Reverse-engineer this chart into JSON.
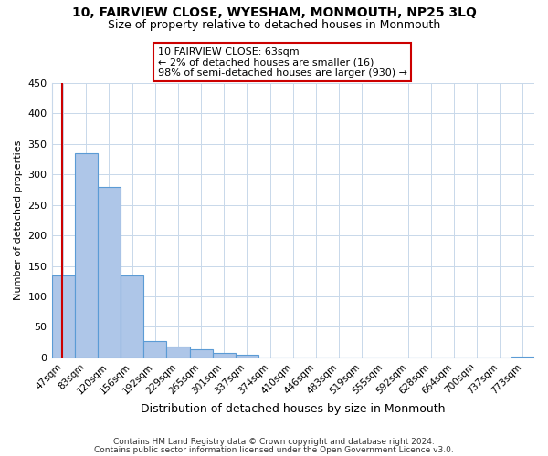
{
  "title": "10, FAIRVIEW CLOSE, WYESHAM, MONMOUTH, NP25 3LQ",
  "subtitle": "Size of property relative to detached houses in Monmouth",
  "xlabel": "Distribution of detached houses by size in Monmouth",
  "ylabel": "Number of detached properties",
  "bar_labels": [
    "47sqm",
    "83sqm",
    "120sqm",
    "156sqm",
    "192sqm",
    "229sqm",
    "265sqm",
    "301sqm",
    "337sqm",
    "374sqm",
    "410sqm",
    "446sqm",
    "483sqm",
    "519sqm",
    "555sqm",
    "592sqm",
    "628sqm",
    "664sqm",
    "700sqm",
    "737sqm",
    "773sqm"
  ],
  "bar_values": [
    135,
    335,
    280,
    135,
    27,
    18,
    13,
    7,
    5,
    0,
    0,
    0,
    0,
    0,
    0,
    0,
    0,
    0,
    0,
    0,
    2
  ],
  "bar_color": "#aec6e8",
  "bar_edge_color": "#5b9bd5",
  "ylim": [
    0,
    450
  ],
  "annotation_title": "10 FAIRVIEW CLOSE: 63sqm",
  "annotation_line1": "← 2% of detached houses are smaller (16)",
  "annotation_line2": "98% of semi-detached houses are larger (930) →",
  "annotation_box_color": "#ffffff",
  "annotation_box_edge": "#cc0000",
  "property_line_color": "#cc0000",
  "footer1": "Contains HM Land Registry data © Crown copyright and database right 2024.",
  "footer2": "Contains public sector information licensed under the Open Government Licence v3.0.",
  "background_color": "#ffffff",
  "grid_color": "#c8d8ea"
}
